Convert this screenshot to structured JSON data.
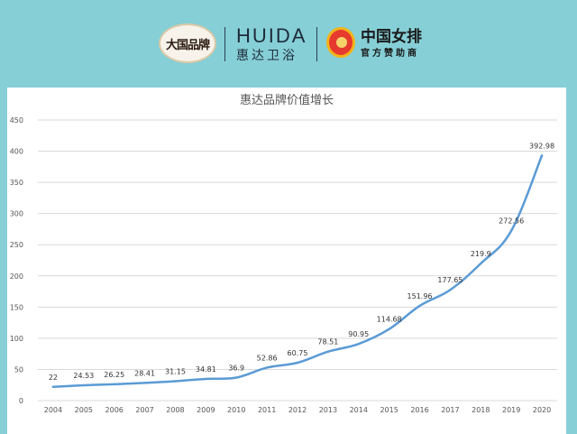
{
  "header": {
    "seal_text": "大国品牌",
    "brand_en": "HUIDA",
    "brand_cn": "惠达卫浴",
    "partner_title": "中国女排",
    "partner_sub": "官方赞助商"
  },
  "colors": {
    "background": "#86cfd6",
    "line": "#5b9bd5",
    "gridline": "#d9d9d9"
  },
  "chart_data": {
    "type": "line",
    "title": "惠达品牌价值增长",
    "xlabel": "",
    "ylabel": "",
    "x": [
      "2004",
      "2005",
      "2006",
      "2007",
      "2008",
      "2009",
      "2010",
      "2011",
      "2012",
      "2013",
      "2014",
      "2015",
      "2016",
      "2017",
      "2018",
      "2019",
      "2020"
    ],
    "series": [
      {
        "values": [
          22,
          24.53,
          26.25,
          28.41,
          31.15,
          34.81,
          36.9,
          52.86,
          60.75,
          78.51,
          90.95,
          114.68,
          151.96,
          177.65,
          219.9,
          272.56,
          392.98
        ],
        "labels": [
          "22",
          "24.53",
          "26.25",
          "28.41",
          "31.15",
          "34.81",
          "36.9",
          "52.86",
          "60.75",
          "78.51",
          "90.95",
          "114.68",
          "151.96",
          "177.65",
          "219.9",
          "272.56",
          "392.98"
        ]
      }
    ],
    "ylim": [
      0,
      450
    ],
    "yticks": [
      "0",
      "50",
      "100",
      "150",
      "200",
      "250",
      "300",
      "350",
      "400",
      "450"
    ],
    "yticks_values": [
      0,
      50,
      100,
      150,
      200,
      250,
      300,
      350,
      400,
      450
    ],
    "grid": true,
    "legend": "none"
  }
}
